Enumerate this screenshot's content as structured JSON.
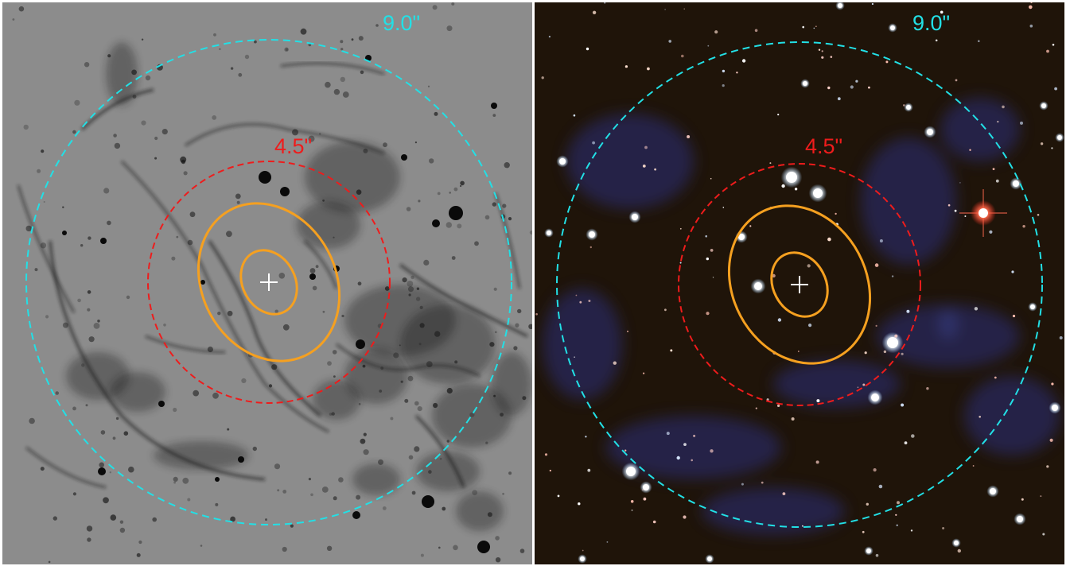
{
  "panels": [
    {
      "id": "left",
      "style": "grayscale-negative",
      "colors": {
        "background": "#8c8c8c",
        "filament": "#141414"
      },
      "outer_circle": {
        "label": "9.0\"",
        "color": "#22e0e6"
      },
      "inner_circle": {
        "label": "4.5\"",
        "color": "#ee1c1c"
      },
      "ellipse_color": "#f5a020",
      "marker_color": "#ffffff"
    },
    {
      "id": "right",
      "style": "color-composite",
      "colors": {
        "background": "#1f1409",
        "nebula": "#2a2f7a",
        "star": "#ffffff",
        "bright_star": "#ff6040"
      },
      "outer_circle": {
        "label": "9.0\"",
        "color": "#22e0e6"
      },
      "inner_circle": {
        "label": "4.5\"",
        "color": "#ee1c1c"
      },
      "ellipse_color": "#f5a020",
      "marker_color": "#ffffff"
    }
  ]
}
